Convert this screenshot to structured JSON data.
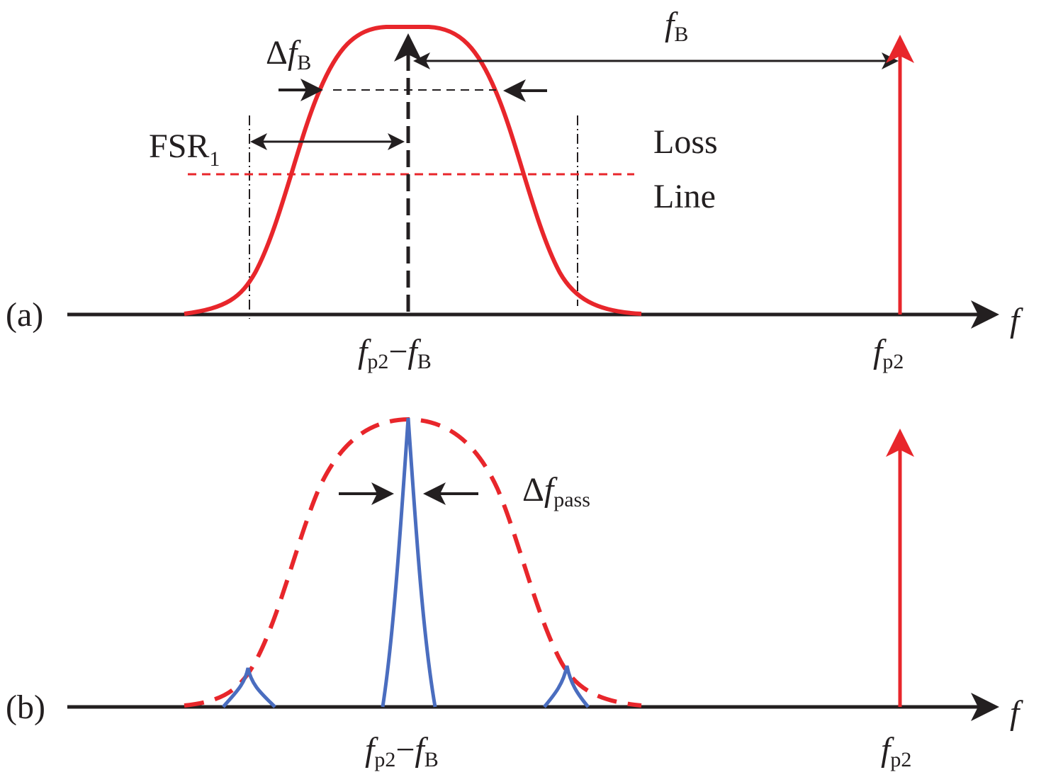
{
  "colors": {
    "red": "#e8262b",
    "blue": "#4a6dbf",
    "black": "#231f20"
  },
  "panel_a": {
    "label": "(a)",
    "axis_label": "f",
    "delta_fB": {
      "delta": "Δ",
      "f": "f",
      "sub": "B"
    },
    "fB": {
      "f": "f",
      "sub": "B"
    },
    "fsr": {
      "main": "FSR",
      "sub": "1"
    },
    "loss_line": {
      "line1": "Loss",
      "line2": "Line"
    },
    "center_label": {
      "f1": "f",
      "sub1": "p2",
      "minus": "−",
      "f2": "f",
      "sub2": "B"
    },
    "pump_label": {
      "f": "f",
      "sub": "p2"
    }
  },
  "panel_b": {
    "label": "(b)",
    "axis_label": "f",
    "delta_fpass": {
      "delta": "Δ",
      "f": "f",
      "sub": "pass"
    },
    "center_label": {
      "f1": "f",
      "sub1": "p2",
      "minus": "−",
      "f2": "f",
      "sub2": "B"
    },
    "pump_label": {
      "f": "f",
      "sub": "p2"
    }
  }
}
